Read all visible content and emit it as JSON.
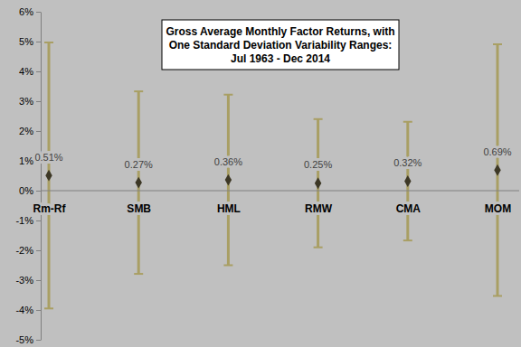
{
  "chart_data": {
    "type": "errorbar",
    "title": "Gross Average Monthly Factor Returns, with\nOne Standard Deviation Variability Ranges:\nJul 1963 - Dec 2014",
    "categories": [
      "Rm-Rf",
      "SMB",
      "HML",
      "RMW",
      "CMA",
      "MOM"
    ],
    "values": [
      0.51,
      0.27,
      0.36,
      0.25,
      0.32,
      0.69
    ],
    "value_labels": [
      "0.51%",
      "0.27%",
      "0.36%",
      "0.25%",
      "0.32%",
      "0.69%"
    ],
    "errors": [
      4.46,
      3.06,
      2.86,
      2.15,
      1.99,
      4.22
    ],
    "color": "#3d3826",
    "marker": "diamond",
    "data_labels": true,
    "grid": false,
    "ylim": [
      -5,
      6
    ],
    "yticks": [
      {
        "value": -5,
        "label": "-5%"
      },
      {
        "value": -4,
        "label": "-4%"
      },
      {
        "value": -3,
        "label": "-3%"
      },
      {
        "value": -2,
        "label": "-2%"
      },
      {
        "value": -1,
        "label": "-1%"
      },
      {
        "value": 0,
        "label": "0%"
      },
      {
        "value": 1,
        "label": "1%"
      },
      {
        "value": 2,
        "label": "2%"
      },
      {
        "value": 3,
        "label": "3%"
      },
      {
        "value": 4,
        "label": "4%"
      },
      {
        "value": 5,
        "label": "5%"
      },
      {
        "value": 6,
        "label": "6%"
      }
    ]
  }
}
